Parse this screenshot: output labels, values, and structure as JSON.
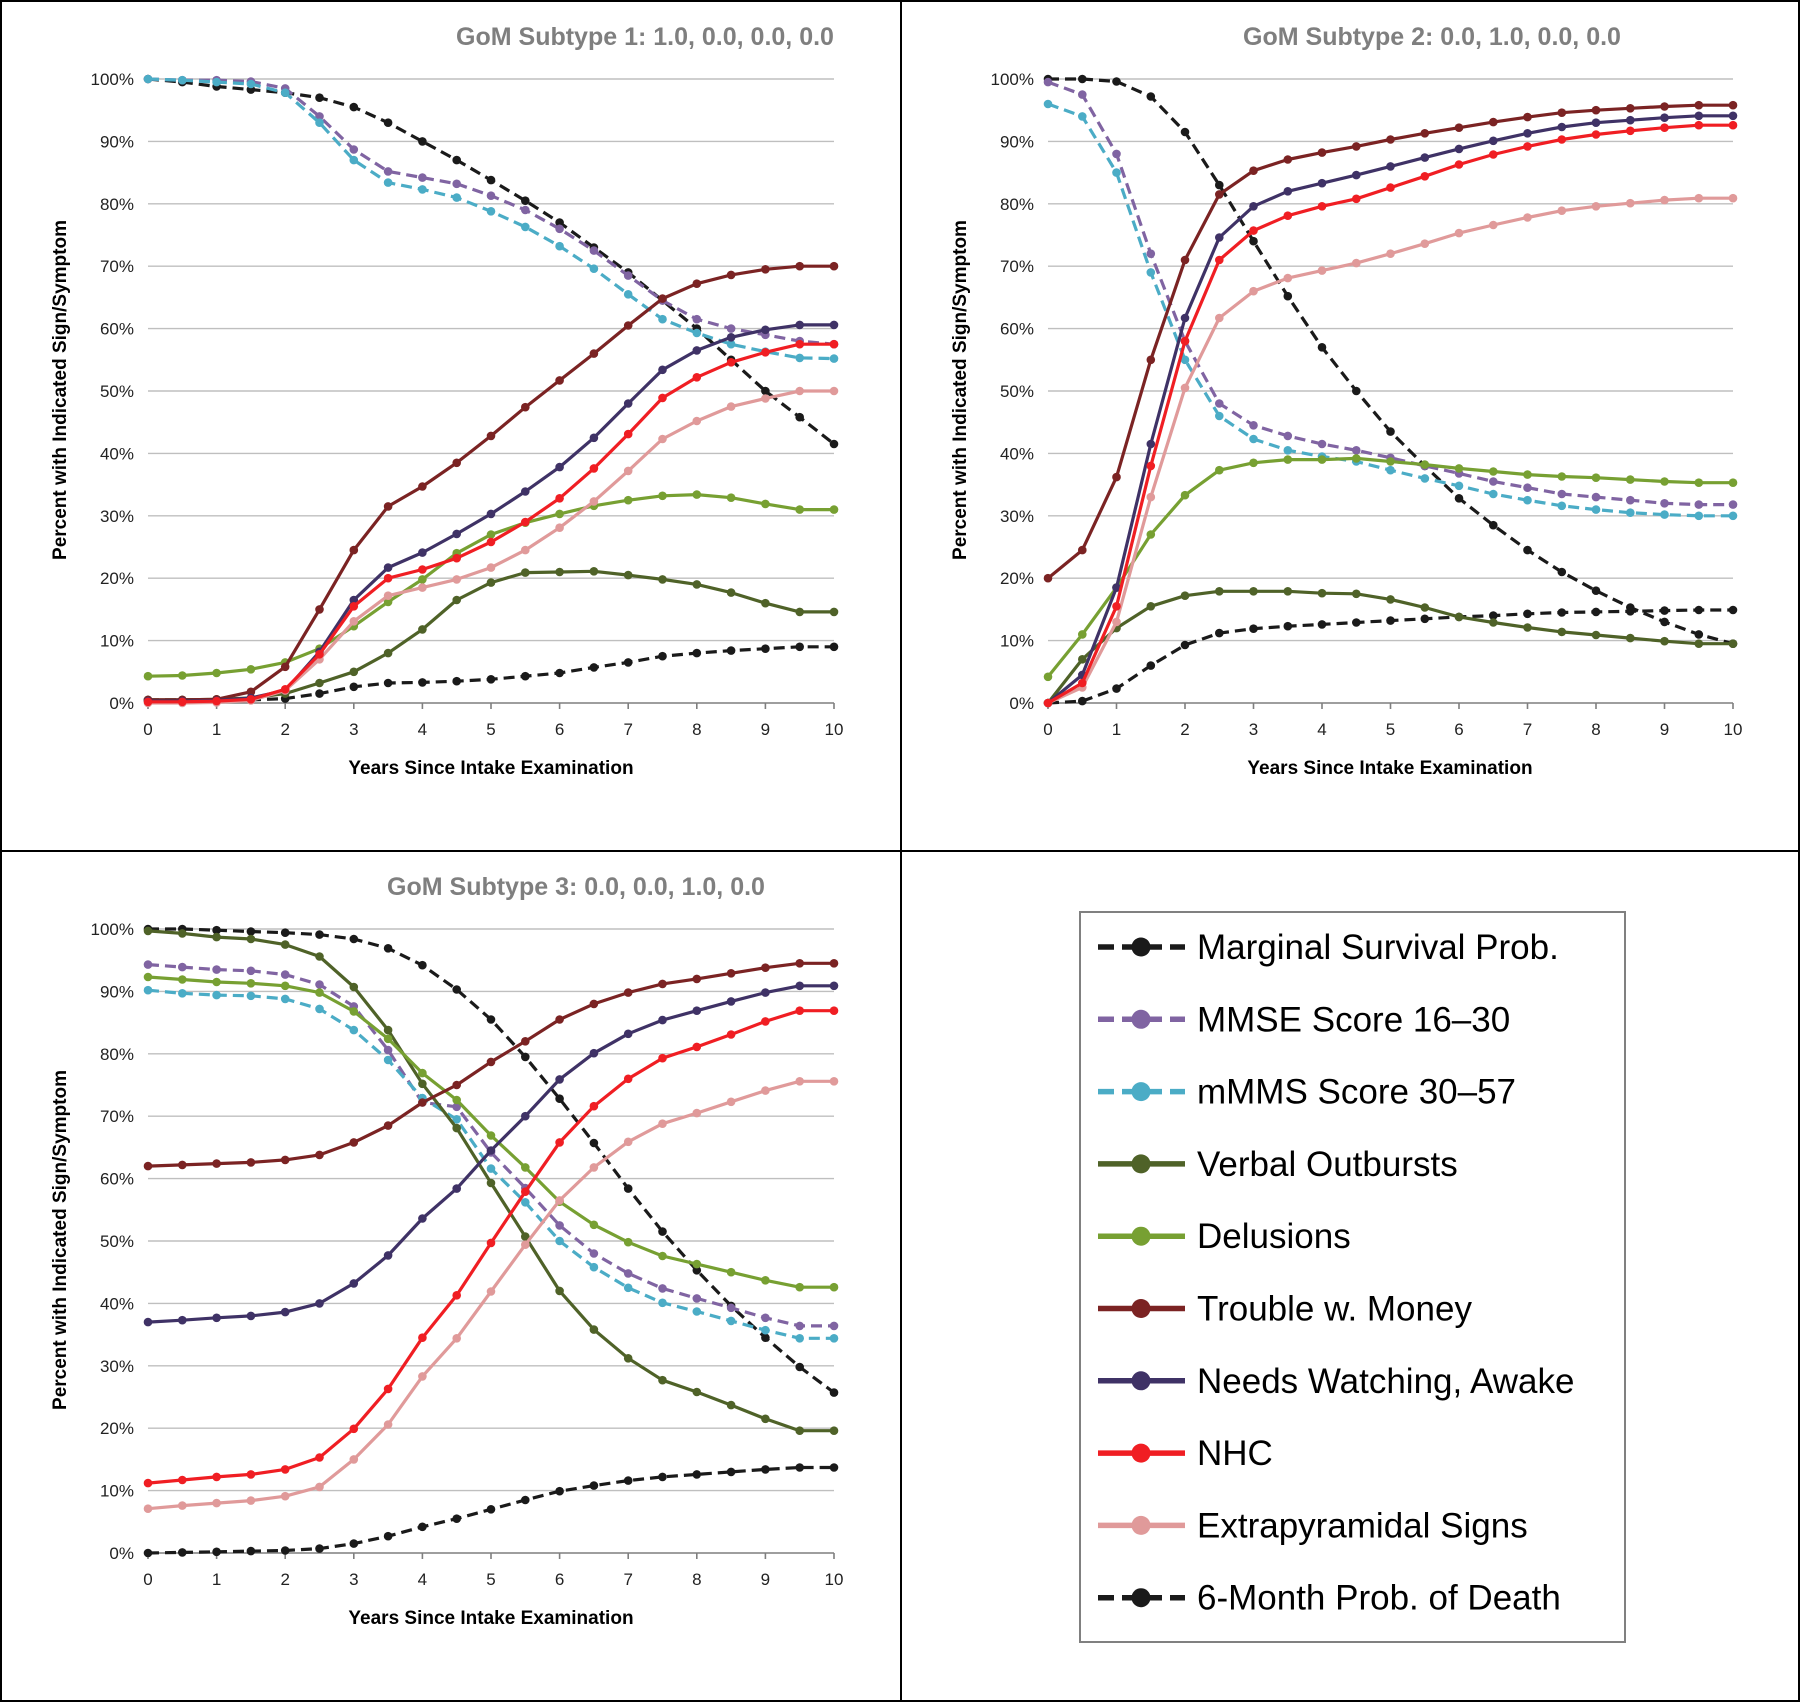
{
  "figure": {
    "legend": [
      {
        "key": "survival",
        "label": "Marginal Survival Prob."
      },
      {
        "key": "mmse",
        "label": "MMSE Score 16–30"
      },
      {
        "key": "mmms",
        "label": "mMMS Score 30–57"
      },
      {
        "key": "verbal",
        "label": "Verbal Outbursts"
      },
      {
        "key": "delusions",
        "label": "Delusions"
      },
      {
        "key": "money",
        "label": "Trouble w. Money"
      },
      {
        "key": "watching",
        "label": "Needs Watching, Awake"
      },
      {
        "key": "nhc",
        "label": "NHC"
      },
      {
        "key": "eps",
        "label": "Extrapyramidal Signs"
      },
      {
        "key": "death",
        "label": "6-Month Prob. of Death"
      }
    ],
    "series_style": {
      "survival": {
        "color": "#1a1a1a",
        "dashed": true
      },
      "mmse": {
        "color": "#8064a2",
        "dashed": true
      },
      "mmms": {
        "color": "#4bacc6",
        "dashed": true
      },
      "verbal": {
        "color": "#4f6228",
        "dashed": false
      },
      "delusions": {
        "color": "#77a032",
        "dashed": false
      },
      "money": {
        "color": "#7b2323",
        "dashed": false
      },
      "watching": {
        "color": "#3f3266",
        "dashed": false
      },
      "nhc": {
        "color": "#f01e23",
        "dashed": false
      },
      "eps": {
        "color": "#e09a9a",
        "dashed": false
      },
      "death": {
        "color": "#1a1a1a",
        "dashed": true
      }
    }
  },
  "chart_data": [
    {
      "type": "line",
      "title": "GoM Subtype 1: 1.0, 0.0, 0.0, 0.0",
      "xlabel": "Years Since Intake Examination",
      "ylabel": "Percent with Indicated Sign/Symptom",
      "xlim": [
        0,
        10
      ],
      "ylim": [
        0,
        100
      ],
      "xticks": [
        "0",
        "1",
        "2",
        "3",
        "4",
        "5",
        "6",
        "7",
        "8",
        "9",
        "10"
      ],
      "yticks": [
        "0%",
        "10%",
        "20%",
        "30%",
        "40%",
        "50%",
        "60%",
        "70%",
        "80%",
        "90%",
        "100%"
      ],
      "grid": true,
      "x": [
        0,
        0.5,
        1,
        1.5,
        2,
        2.5,
        3,
        3.5,
        4,
        4.5,
        5,
        5.5,
        6,
        6.5,
        7,
        7.5,
        8,
        8.5,
        9,
        9.5,
        10
      ],
      "series": [
        {
          "key": "survival",
          "values": [
            100,
            99.5,
            98.8,
            98.3,
            97.8,
            97,
            95.5,
            93,
            90,
            87,
            83.8,
            80.5,
            77,
            73,
            69,
            64.5,
            60,
            55,
            50,
            45.8,
            41.5
          ]
        },
        {
          "key": "mmse",
          "values": [
            100,
            99.8,
            99.8,
            99.6,
            98.5,
            94,
            88.7,
            85.2,
            84.2,
            83.2,
            81.3,
            79,
            76,
            72.5,
            68.5,
            64.5,
            61.5,
            60,
            59,
            58,
            57.5
          ]
        },
        {
          "key": "mmms",
          "values": [
            100,
            99.8,
            99.5,
            99.2,
            97.8,
            93,
            87,
            83.4,
            82.3,
            81,
            78.8,
            76.3,
            73.2,
            69.6,
            65.5,
            61.5,
            59.3,
            57.5,
            56.3,
            55.3,
            55.2
          ]
        },
        {
          "key": "verbal",
          "values": [
            0.5,
            0.5,
            0.6,
            0.8,
            1.5,
            3.2,
            5,
            8,
            11.8,
            16.5,
            19.3,
            20.9,
            21,
            21.1,
            20.5,
            19.8,
            19,
            17.7,
            16,
            14.6,
            14.6
          ]
        },
        {
          "key": "delusions",
          "values": [
            4.3,
            4.4,
            4.8,
            5.4,
            6.5,
            8.7,
            12.3,
            16.2,
            19.8,
            24,
            27,
            28.9,
            30.3,
            31.6,
            32.5,
            33.2,
            33.4,
            32.9,
            31.9,
            31,
            31
          ]
        },
        {
          "key": "money",
          "values": [
            0.5,
            0.5,
            0.6,
            1.8,
            5.8,
            15,
            24.5,
            31.5,
            34.7,
            38.5,
            42.8,
            47.4,
            51.7,
            56,
            60.5,
            64.8,
            67.2,
            68.6,
            69.5,
            70,
            70
          ]
        },
        {
          "key": "watching",
          "values": [
            0.3,
            0.3,
            0.4,
            0.8,
            2,
            8.2,
            16.5,
            21.7,
            24.1,
            27.1,
            30.3,
            33.9,
            37.8,
            42.5,
            48,
            53.4,
            56.5,
            58.6,
            59.8,
            60.6,
            60.6
          ]
        },
        {
          "key": "nhc",
          "values": [
            0.2,
            0.2,
            0.3,
            0.6,
            2.2,
            7.8,
            15.5,
            20,
            21.4,
            23.2,
            25.8,
            29,
            32.8,
            37.6,
            43.1,
            48.9,
            52.2,
            54.6,
            56.2,
            57.5,
            57.5
          ]
        },
        {
          "key": "eps",
          "values": [
            0,
            0,
            0.1,
            0.4,
            2,
            7,
            13.1,
            17.2,
            18.5,
            19.8,
            21.7,
            24.5,
            28.1,
            32.3,
            37.2,
            42.3,
            45.2,
            47.5,
            48.8,
            50,
            50
          ]
        },
        {
          "key": "death",
          "values": [
            0.5,
            0.5,
            0.5,
            0.5,
            0.7,
            1.5,
            2.6,
            3.2,
            3.3,
            3.5,
            3.8,
            4.3,
            4.8,
            5.7,
            6.5,
            7.5,
            8,
            8.4,
            8.7,
            9,
            9
          ]
        }
      ]
    },
    {
      "type": "line",
      "title": "GoM Subtype 2: 0.0, 1.0, 0.0, 0.0",
      "xlabel": "Years Since Intake Examination",
      "ylabel": "Percent with Indicated Sign/Symptom",
      "xlim": [
        0,
        10
      ],
      "ylim": [
        0,
        100
      ],
      "xticks": [
        "0",
        "1",
        "2",
        "3",
        "4",
        "5",
        "6",
        "7",
        "8",
        "9",
        "10"
      ],
      "yticks": [
        "0%",
        "10%",
        "20%",
        "30%",
        "40%",
        "50%",
        "60%",
        "70%",
        "80%",
        "90%",
        "100%"
      ],
      "grid": true,
      "x": [
        0,
        0.5,
        1,
        1.5,
        2,
        2.5,
        3,
        3.5,
        4,
        4.5,
        5,
        5.5,
        6,
        6.5,
        7,
        7.5,
        8,
        8.5,
        9,
        9.5,
        10
      ],
      "series": [
        {
          "key": "survival",
          "values": [
            100,
            100,
            99.6,
            97.2,
            91.5,
            83,
            74,
            65.2,
            57,
            50,
            43.5,
            38,
            32.8,
            28.5,
            24.5,
            21,
            18,
            15.3,
            13,
            11,
            9.5
          ]
        },
        {
          "key": "mmse",
          "values": [
            99.5,
            97.5,
            88,
            72,
            58,
            48,
            44.5,
            42.8,
            41.5,
            40.5,
            39.3,
            38,
            36.8,
            35.5,
            34.5,
            33.5,
            33,
            32.5,
            32,
            31.8,
            31.8
          ]
        },
        {
          "key": "mmms",
          "values": [
            96,
            94,
            85,
            69,
            55,
            46,
            42.3,
            40.5,
            39.5,
            38.7,
            37.3,
            36,
            34.8,
            33.5,
            32.5,
            31.6,
            31,
            30.5,
            30.2,
            30,
            30
          ]
        },
        {
          "key": "verbal",
          "values": [
            0,
            7,
            12,
            15.5,
            17.2,
            17.9,
            17.9,
            17.9,
            17.6,
            17.5,
            16.6,
            15.3,
            13.8,
            12.9,
            12.1,
            11.4,
            10.9,
            10.4,
            9.9,
            9.5,
            9.5
          ]
        },
        {
          "key": "delusions",
          "values": [
            4.2,
            11,
            18.5,
            27,
            33.3,
            37.3,
            38.5,
            39,
            39,
            39.2,
            38.7,
            38.2,
            37.6,
            37.1,
            36.6,
            36.3,
            36.1,
            35.8,
            35.5,
            35.3,
            35.3
          ]
        },
        {
          "key": "money",
          "values": [
            20,
            24.5,
            36.2,
            55,
            71,
            81.5,
            85.3,
            87.1,
            88.2,
            89.2,
            90.3,
            91.3,
            92.2,
            93.1,
            93.9,
            94.6,
            95,
            95.3,
            95.6,
            95.8,
            95.8
          ]
        },
        {
          "key": "watching",
          "values": [
            0,
            4.5,
            18.5,
            41.5,
            61.7,
            74.6,
            79.6,
            82,
            83.3,
            84.6,
            86,
            87.4,
            88.8,
            90.1,
            91.3,
            92.3,
            93,
            93.4,
            93.8,
            94.1,
            94.1
          ]
        },
        {
          "key": "nhc",
          "values": [
            0,
            3.2,
            15.5,
            38,
            58,
            71,
            75.7,
            78.1,
            79.6,
            80.8,
            82.6,
            84.4,
            86.3,
            87.9,
            89.2,
            90.3,
            91.1,
            91.7,
            92.2,
            92.6,
            92.6
          ]
        },
        {
          "key": "eps",
          "values": [
            0,
            2.5,
            13,
            33,
            50.5,
            61.7,
            66,
            68.1,
            69.3,
            70.5,
            72,
            73.6,
            75.3,
            76.6,
            77.8,
            78.9,
            79.6,
            80.1,
            80.6,
            80.9,
            80.9
          ]
        },
        {
          "key": "death",
          "values": [
            0,
            0.3,
            2.3,
            6,
            9.3,
            11.2,
            11.9,
            12.3,
            12.6,
            12.9,
            13.2,
            13.5,
            13.8,
            14,
            14.3,
            14.5,
            14.6,
            14.7,
            14.8,
            14.9,
            14.9
          ]
        }
      ]
    },
    {
      "type": "line",
      "title": "GoM Subtype 3: 0.0, 0.0, 1.0, 0.0",
      "xlabel": "Years Since Intake Examination",
      "ylabel": "Percent with Indicated Sign/Symptom",
      "xlim": [
        0,
        10
      ],
      "ylim": [
        0,
        100
      ],
      "xticks": [
        "0",
        "1",
        "2",
        "3",
        "4",
        "5",
        "6",
        "7",
        "8",
        "9",
        "10"
      ],
      "yticks": [
        "0%",
        "10%",
        "20%",
        "30%",
        "40%",
        "50%",
        "60%",
        "70%",
        "80%",
        "90%",
        "100%"
      ],
      "grid": true,
      "x": [
        0,
        0.5,
        1,
        1.5,
        2,
        2.5,
        3,
        3.5,
        4,
        4.5,
        5,
        5.5,
        6,
        6.5,
        7,
        7.5,
        8,
        8.5,
        9,
        9.5,
        10
      ],
      "series": [
        {
          "key": "survival",
          "values": [
            100,
            100,
            99.8,
            99.6,
            99.4,
            99.1,
            98.4,
            96.9,
            94.2,
            90.3,
            85.5,
            79.5,
            72.8,
            65.7,
            58.4,
            51.5,
            45.3,
            39.6,
            34.5,
            29.8,
            25.7
          ]
        },
        {
          "key": "mmse",
          "values": [
            94.3,
            93.9,
            93.5,
            93.3,
            92.7,
            91.1,
            87.6,
            80.6,
            72.2,
            71.5,
            64.2,
            58.5,
            52.5,
            48,
            44.8,
            42.4,
            40.8,
            39.3,
            37.7,
            36.4,
            36.4
          ]
        },
        {
          "key": "mmms",
          "values": [
            90.2,
            89.7,
            89.4,
            89.3,
            88.8,
            87.2,
            83.8,
            79,
            72.9,
            69.5,
            61.6,
            56.2,
            50,
            45.8,
            42.5,
            40.1,
            38.7,
            37.2,
            35.7,
            34.4,
            34.4
          ]
        },
        {
          "key": "verbal",
          "values": [
            99.7,
            99.3,
            98.7,
            98.4,
            97.5,
            95.6,
            90.7,
            83.8,
            75.2,
            68.1,
            59.3,
            50.7,
            42,
            35.8,
            31.2,
            27.7,
            25.8,
            23.7,
            21.5,
            19.6,
            19.6
          ]
        },
        {
          "key": "delusions",
          "values": [
            92.3,
            91.9,
            91.5,
            91.3,
            90.9,
            89.8,
            86.8,
            82.4,
            76.9,
            72.6,
            66.9,
            61.8,
            56.3,
            52.6,
            49.8,
            47.6,
            46.3,
            45,
            43.7,
            42.6,
            42.6
          ]
        },
        {
          "key": "money",
          "values": [
            62,
            62.2,
            62.4,
            62.6,
            63,
            63.8,
            65.8,
            68.5,
            72.2,
            75,
            78.7,
            82,
            85.5,
            88,
            89.8,
            91.2,
            92,
            92.9,
            93.8,
            94.5,
            94.5
          ]
        },
        {
          "key": "watching",
          "values": [
            37,
            37.3,
            37.7,
            38,
            38.6,
            40,
            43.2,
            47.7,
            53.6,
            58.4,
            64.5,
            70,
            75.9,
            80.1,
            83.2,
            85.4,
            86.9,
            88.4,
            89.8,
            90.9,
            90.9
          ]
        },
        {
          "key": "nhc",
          "values": [
            11.2,
            11.7,
            12.2,
            12.6,
            13.4,
            15.3,
            19.9,
            26.3,
            34.5,
            41.3,
            49.7,
            57.9,
            65.8,
            71.6,
            76,
            79.3,
            81.1,
            83.1,
            85.2,
            86.9,
            86.9
          ]
        },
        {
          "key": "eps",
          "values": [
            7.1,
            7.6,
            8,
            8.4,
            9.1,
            10.6,
            15,
            20.6,
            28.3,
            34.4,
            41.9,
            49.4,
            56.5,
            61.8,
            65.9,
            68.8,
            70.5,
            72.3,
            74.1,
            75.6,
            75.6
          ]
        },
        {
          "key": "death",
          "values": [
            0,
            0.1,
            0.2,
            0.3,
            0.4,
            0.7,
            1.5,
            2.7,
            4.2,
            5.5,
            7,
            8.5,
            9.9,
            10.8,
            11.6,
            12.2,
            12.6,
            13,
            13.4,
            13.7,
            13.7
          ]
        }
      ]
    }
  ]
}
